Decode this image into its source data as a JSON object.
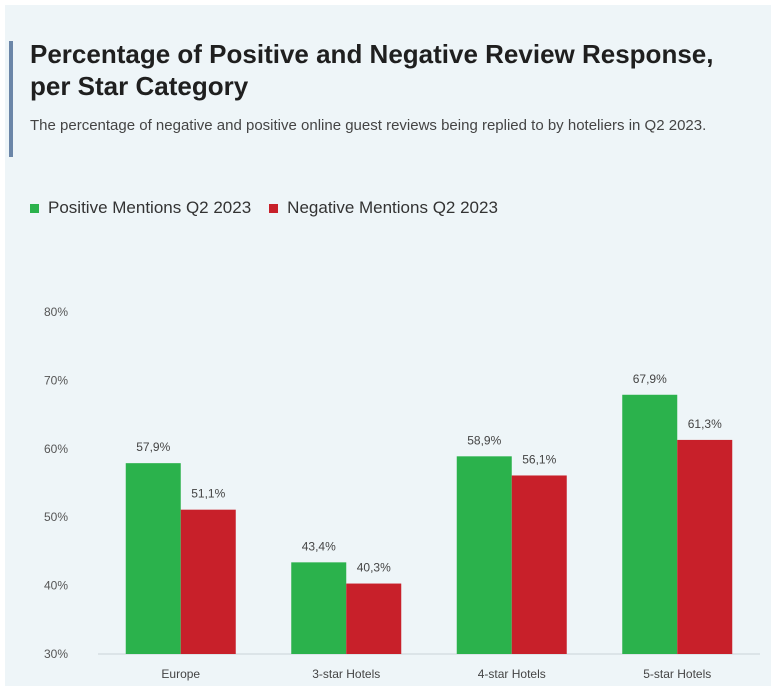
{
  "header": {
    "title": "Percentage of Positive and Negative Review Response, per Star Category",
    "subtitle": "The percentage of negative and positive online guest reviews being replied to by hoteliers in Q2 2023."
  },
  "colors": {
    "positive": "#2bb24c",
    "negative": "#c8202a",
    "accent": "#6b86a8"
  },
  "chart_data": {
    "type": "bar",
    "title": "Percentage of Positive and Negative Review Response, per Star Category",
    "subtitle": "The percentage of negative and positive online guest reviews being replied to by hoteliers in Q2 2023.",
    "categories": [
      "Europe",
      "3-star Hotels",
      "4-star Hotels",
      "5-star Hotels"
    ],
    "series": [
      {
        "name": "Positive Mentions Q2 2023",
        "values": [
          57.9,
          43.4,
          58.9,
          67.9
        ],
        "labels": [
          "57,9%",
          "43,4%",
          "58,9%",
          "67,9%"
        ],
        "color": "#2bb24c"
      },
      {
        "name": "Negative Mentions Q2 2023",
        "values": [
          51.1,
          40.3,
          56.1,
          61.3
        ],
        "labels": [
          "51,1%",
          "40,3%",
          "56,1%",
          "61,3%"
        ],
        "color": "#c8202a"
      }
    ],
    "ylim": [
      30,
      80
    ],
    "yticks": [
      30,
      40,
      50,
      60,
      70,
      80
    ],
    "ytick_labels": [
      "30%",
      "40%",
      "50%",
      "60%",
      "70%",
      "80%"
    ],
    "xlabel": "",
    "ylabel": "",
    "grid": false,
    "legend_position": "top-left"
  }
}
